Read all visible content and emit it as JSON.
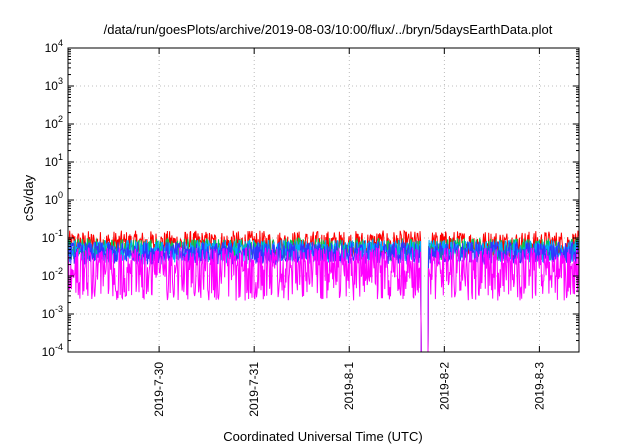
{
  "chart_data": {
    "type": "line",
    "title": "/data/run/goesPlots/archive/2019-08-03/10:00/flux/../bryn/5daysEarthData.plot",
    "xlabel": "Coordinated Universal Time (UTC)",
    "ylabel": "cSv/day",
    "y_scale": "log",
    "ylim": [
      0.0001,
      10000
    ],
    "y_ticks": [
      {
        "base": "10",
        "exp": "-4"
      },
      {
        "base": "10",
        "exp": "-3"
      },
      {
        "base": "10",
        "exp": "-2"
      },
      {
        "base": "10",
        "exp": "-1"
      },
      {
        "base": "10",
        "exp": "0"
      },
      {
        "base": "10",
        "exp": "1"
      },
      {
        "base": "10",
        "exp": "2"
      },
      {
        "base": "10",
        "exp": "3"
      },
      {
        "base": "10",
        "exp": "4"
      }
    ],
    "x_range": [
      "2019-07-29 01:00",
      "2019-08-03 10:00"
    ],
    "x_ticks": [
      {
        "label": "2019-7-30",
        "date": "2019-07-30"
      },
      {
        "label": "2019-7-31",
        "date": "2019-07-31"
      },
      {
        "label": "2019-8-1",
        "date": "2019-08-01"
      },
      {
        "label": "2019-8-2",
        "date": "2019-08-02"
      },
      {
        "label": "2019-8-3",
        "date": "2019-08-03"
      }
    ],
    "grid": true,
    "legend": "none",
    "series": [
      {
        "color": "#ff0000",
        "median": 0.07,
        "spread": 0.35
      },
      {
        "color": "#00cc55",
        "median": 0.05,
        "spread": 0.3
      },
      {
        "color": "#00aaff",
        "median": 0.045,
        "spread": 0.3
      },
      {
        "color": "#3333ff",
        "median": 0.04,
        "spread": 0.3
      },
      {
        "color": "#ff00ff",
        "median": 0.008,
        "spread": 0.55
      }
    ],
    "events": [
      {
        "date": "2019-08-01 19:00",
        "description": "data gap / dropout to lower bound"
      }
    ]
  }
}
